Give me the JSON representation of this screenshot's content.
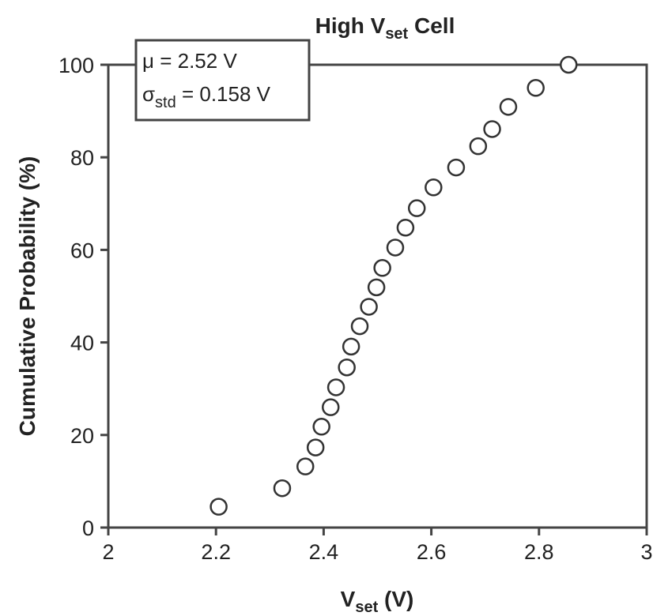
{
  "chart_data": {
    "type": "scatter",
    "title_prefix": "High V",
    "title_sub": "set",
    "title_suffix": " Cell",
    "xlabel_prefix": "V",
    "xlabel_sub": "set",
    "xlabel_suffix": " (V)",
    "ylabel": "Cumulative Probability (%)",
    "xlim": [
      2,
      3
    ],
    "ylim": [
      0,
      100
    ],
    "x_ticks": [
      "2",
      "2.2",
      "2.4",
      "2.6",
      "2.8",
      "3"
    ],
    "x_tick_values": [
      2,
      2.2,
      2.4,
      2.6,
      2.8,
      3
    ],
    "y_ticks": [
      "0",
      "20",
      "40",
      "60",
      "80",
      "100"
    ],
    "y_tick_values": [
      0,
      20,
      40,
      60,
      80,
      100
    ],
    "grid": false,
    "legend_placement": "top-left",
    "annotation": {
      "mu_line": "μ = 2.52 V",
      "sigma_symbol": "σ",
      "sigma_sub": "std",
      "sigma_value": " = 0.158 V"
    },
    "series": [
      {
        "x": [
          2.205,
          2.323,
          2.366,
          2.385,
          2.396,
          2.413,
          2.423,
          2.443,
          2.451,
          2.467,
          2.484,
          2.498,
          2.509,
          2.533,
          2.552,
          2.573,
          2.604,
          2.646,
          2.687,
          2.713,
          2.743,
          2.794,
          2.855
        ],
        "y": [
          4.5,
          8.5,
          13.2,
          17.3,
          21.8,
          26.0,
          30.3,
          34.6,
          39.1,
          43.5,
          47.7,
          51.9,
          56.1,
          60.5,
          64.8,
          69.0,
          73.5,
          77.8,
          82.4,
          86.1,
          90.9,
          95.0,
          100.0
        ]
      }
    ]
  }
}
